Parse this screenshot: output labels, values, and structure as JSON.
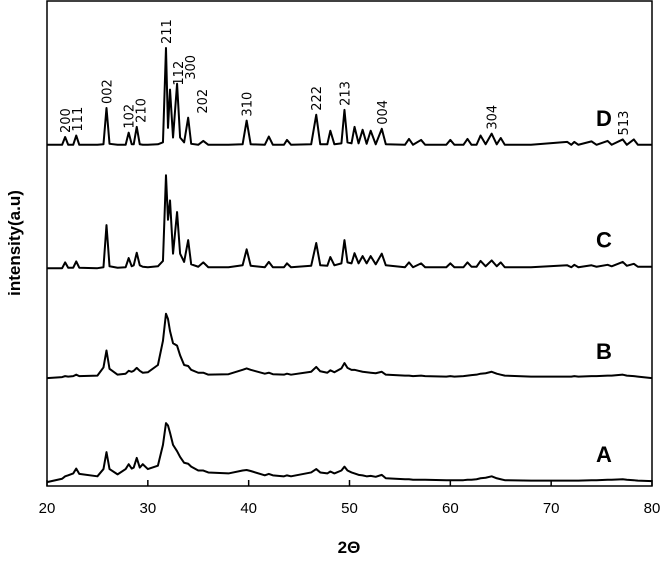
{
  "chart_data": {
    "type": "line",
    "xlabel": "2Θ",
    "ylabel": "intensity(a.u)",
    "xlim": [
      20,
      80
    ],
    "xticks": [
      20,
      30,
      40,
      50,
      60,
      70,
      80
    ],
    "ylim": [
      0,
      100
    ],
    "x": [
      20,
      21.5,
      21.8,
      22.1,
      22.6,
      22.9,
      23.2,
      25.0,
      25.6,
      25.9,
      26.2,
      27.0,
      27.8,
      28.1,
      28.4,
      28.6,
      28.9,
      29.2,
      29.5,
      30.0,
      31.0,
      31.5,
      31.8,
      32.0,
      32.2,
      32.5,
      32.9,
      33.2,
      33.6,
      34.0,
      34.3,
      35.0,
      35.5,
      36.0,
      38.0,
      39.4,
      39.8,
      40.2,
      41.6,
      42.0,
      42.4,
      43.5,
      43.8,
      44.2,
      46.2,
      46.7,
      47.1,
      47.8,
      48.1,
      48.5,
      49.2,
      49.5,
      49.8,
      50.2,
      50.5,
      50.9,
      51.3,
      51.7,
      52.1,
      52.6,
      53.2,
      53.6,
      55.5,
      55.9,
      56.3,
      57.1,
      57.5,
      59.6,
      60.0,
      60.4,
      61.3,
      61.7,
      62.1,
      62.6,
      63.0,
      63.5,
      64.1,
      64.6,
      65.0,
      65.4,
      68.0,
      71.6,
      72.0,
      72.3,
      72.7,
      74.0,
      74.5,
      75.6,
      76.0,
      77.1,
      77.5,
      78.2,
      78.6,
      80
    ],
    "series": [
      {
        "name": "A",
        "color": "#000000",
        "values": [
          0.8,
          1.5,
          2,
          2.2,
          2.6,
          3.6,
          2.5,
          2,
          3.5,
          7,
          3.5,
          2.4,
          3.5,
          4.5,
          3.6,
          3.8,
          5.8,
          3.8,
          4.5,
          3.5,
          4.2,
          8.5,
          13,
          12.5,
          11,
          8.5,
          7.2,
          6,
          4.8,
          4.6,
          4,
          3.2,
          3.2,
          2.8,
          2.6,
          3.2,
          3.3,
          3.1,
          2.2,
          2.5,
          2.2,
          2,
          2.2,
          2,
          2.8,
          3.5,
          2.8,
          2.6,
          3,
          2.6,
          3.2,
          4,
          3.2,
          2.8,
          2.6,
          2.3,
          2.2,
          2,
          2.1,
          1.9,
          2.3,
          1.6,
          1.4,
          1.4,
          1.3,
          1.3,
          1.3,
          1.2,
          1.2,
          1.2,
          1.2,
          1.3,
          1.3,
          1.4,
          1.6,
          1.7,
          2,
          1.6,
          1.4,
          1.2,
          1.1,
          1.1,
          1.1,
          1.1,
          1.1,
          1.2,
          1.2,
          1.3,
          1.3,
          1.4,
          1.3,
          1.2,
          1.1,
          1
        ]
      },
      {
        "name": "B",
        "color": "#000000",
        "values": [
          22.3,
          22.5,
          22.7,
          22.6,
          22.7,
          23,
          22.7,
          22.8,
          24.5,
          28,
          24.2,
          23,
          23.2,
          23.8,
          23.6,
          23.8,
          24.4,
          23.8,
          23.4,
          23.5,
          25,
          30,
          35.6,
          34.5,
          32,
          29.5,
          29,
          27,
          25,
          24.8,
          24,
          23.4,
          23.4,
          23,
          23.1,
          24,
          24.3,
          24,
          23.2,
          23.4,
          23.1,
          23,
          23.2,
          23,
          23.6,
          24.6,
          23.7,
          23.4,
          23.9,
          23.5,
          24.3,
          25.4,
          24.4,
          24,
          24,
          23.8,
          23.6,
          23.5,
          23.4,
          23.3,
          23.6,
          23,
          22.8,
          22.8,
          22.7,
          22.8,
          22.7,
          22.6,
          22.7,
          22.6,
          22.7,
          22.8,
          22.9,
          23,
          23.2,
          23.3,
          23.6,
          23.2,
          23,
          22.8,
          22.6,
          22.6,
          22.6,
          22.7,
          22.6,
          22.7,
          22.7,
          22.8,
          22.8,
          23,
          22.8,
          22.7,
          22.6,
          22.3
        ]
      },
      {
        "name": "C",
        "color": "#000000",
        "values": [
          45,
          45,
          46.2,
          45.1,
          45.1,
          46.4,
          45.1,
          45,
          45.2,
          53.9,
          45.4,
          45.1,
          45.2,
          47.1,
          45.4,
          45.6,
          48.2,
          45.6,
          45.3,
          45.2,
          45.4,
          46.5,
          64.2,
          55,
          59,
          48,
          56.6,
          48,
          46.3,
          50.8,
          45.8,
          45.3,
          46.2,
          45.2,
          45.2,
          45.6,
          48.9,
          45.5,
          45.2,
          46.3,
          45.2,
          45.2,
          46,
          45.2,
          45.5,
          50.2,
          45.6,
          45.5,
          47.3,
          45.6,
          46,
          50.8,
          46.2,
          46,
          48.1,
          46,
          47.5,
          46,
          47.5,
          45.8,
          48,
          45.6,
          45.2,
          46.2,
          45.2,
          46,
          45.2,
          45.2,
          46,
          45.2,
          45.2,
          46.2,
          45.3,
          45.3,
          46.5,
          45.4,
          46.6,
          45.4,
          46.2,
          45.2,
          45.2,
          45.6,
          45.2,
          45.7,
          45.2,
          45.6,
          45.3,
          45.7,
          45.4,
          46.3,
          45.5,
          45.9,
          45.3,
          45.3
        ]
      },
      {
        "name": "D",
        "color": "#000000",
        "values": [
          70.5,
          70.5,
          72.1,
          70.5,
          70.5,
          72.4,
          70.5,
          70.5,
          70.6,
          78.1,
          70.7,
          70.5,
          70.5,
          73,
          70.6,
          70.6,
          74.2,
          70.6,
          70.5,
          70.5,
          70.6,
          71,
          90.5,
          74,
          81.9,
          72,
          83.1,
          72,
          71,
          76.1,
          70.7,
          70.5,
          71.3,
          70.5,
          70.5,
          70.6,
          75.5,
          70.6,
          70.5,
          72.2,
          70.5,
          70.5,
          71.5,
          70.5,
          70.6,
          76.7,
          70.6,
          70.6,
          73.4,
          70.6,
          70.8,
          77.7,
          71,
          70.8,
          74.2,
          70.8,
          73.6,
          70.7,
          73.4,
          70.6,
          73.8,
          70.6,
          70.5,
          71.7,
          70.5,
          71.5,
          70.5,
          70.5,
          71.5,
          70.5,
          70.5,
          71.7,
          70.5,
          70.5,
          72.4,
          70.6,
          72.8,
          70.6,
          71.9,
          70.5,
          70.5,
          71.1,
          70.5,
          71.1,
          70.5,
          71.2,
          70.5,
          71.3,
          70.5,
          71.6,
          70.5,
          71.6,
          70.5,
          70.5
        ]
      }
    ],
    "annotations": [
      {
        "text": "200",
        "x": 21.8
      },
      {
        "text": "111",
        "x": 22.9
      },
      {
        "text": "002",
        "x": 25.9
      },
      {
        "text": "102",
        "x": 28.1
      },
      {
        "text": "210",
        "x": 28.9
      },
      {
        "text": "211",
        "x": 31.8
      },
      {
        "text": "112",
        "x": 32.2
      },
      {
        "text": "300",
        "x": 32.9
      },
      {
        "text": "202",
        "x": 34.0
      },
      {
        "text": "310",
        "x": 39.8
      },
      {
        "text": "222",
        "x": 46.7
      },
      {
        "text": "213",
        "x": 49.5
      },
      {
        "text": "004",
        "x": 53.2
      },
      {
        "text": "304",
        "x": 64.1
      },
      {
        "text": "513",
        "x": 77.1
      }
    ]
  }
}
